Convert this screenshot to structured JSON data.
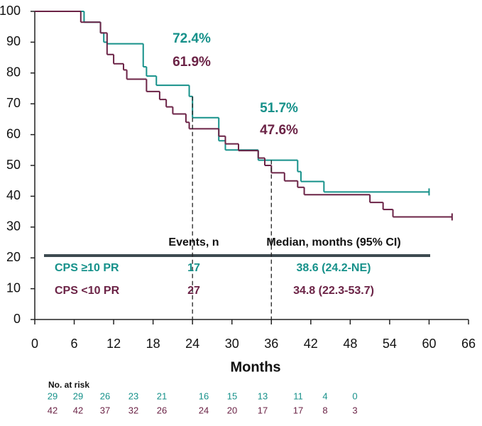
{
  "chart_data": {
    "type": "line",
    "step": true,
    "x_label": "Months",
    "xlim": [
      0,
      66
    ],
    "xticks": [
      0,
      6,
      12,
      18,
      24,
      30,
      36,
      42,
      48,
      54,
      60,
      66
    ],
    "ylim": [
      0,
      100
    ],
    "yticks": [
      0,
      10,
      20,
      30,
      40,
      50,
      60,
      70,
      80,
      90,
      100
    ],
    "series": [
      {
        "name": "CPS ≥10 PR",
        "color": "#16918a",
        "x": [
          0,
          7.5,
          10,
          10.5,
          11,
          16.5,
          17,
          18.5,
          23.5,
          24,
          28,
          29,
          34,
          40,
          40.5,
          44,
          60
        ],
        "values": [
          100,
          96.5,
          93,
          90,
          89.5,
          82,
          79,
          76,
          72.4,
          65.5,
          58,
          55,
          51.7,
          48,
          44.8,
          41.4,
          41.4
        ]
      },
      {
        "name": "CPS <10 PR",
        "color": "#6b2346",
        "x": [
          0,
          7,
          10,
          11,
          12,
          13.5,
          14,
          17,
          19,
          20,
          21,
          23,
          23.5,
          28,
          29,
          31,
          34,
          35,
          36,
          38,
          40,
          41,
          51,
          53,
          54.5,
          63.5
        ],
        "values": [
          100,
          96.5,
          93,
          86,
          83,
          81,
          78,
          74,
          71.4,
          69,
          66.7,
          64,
          61.9,
          59.5,
          57,
          54.8,
          52.4,
          50,
          47.6,
          45,
          42.9,
          40.5,
          38,
          35.7,
          33.3,
          33.3
        ]
      }
    ],
    "landmarks": [
      {
        "x": 24,
        "values": [
          72.4,
          61.9
        ],
        "value_labels": [
          "72.4%",
          "61.9%"
        ]
      },
      {
        "x": 36,
        "values": [
          51.7,
          47.6
        ],
        "value_labels": [
          "51.7%",
          "47.6%"
        ]
      }
    ],
    "table": {
      "headers": [
        "Events, n",
        "Median, months (95% CI)"
      ],
      "events": [
        17,
        27
      ],
      "medians": [
        "38.6 (24.2-NE)",
        "34.8 (22.3-53.7)"
      ]
    },
    "at_risk": {
      "title": "No. at risk",
      "rows": [
        [
          29,
          29,
          26,
          23,
          21,
          16,
          15,
          13,
          11,
          4,
          0
        ],
        [
          42,
          42,
          37,
          32,
          26,
          24,
          20,
          17,
          17,
          8,
          3
        ]
      ]
    }
  }
}
